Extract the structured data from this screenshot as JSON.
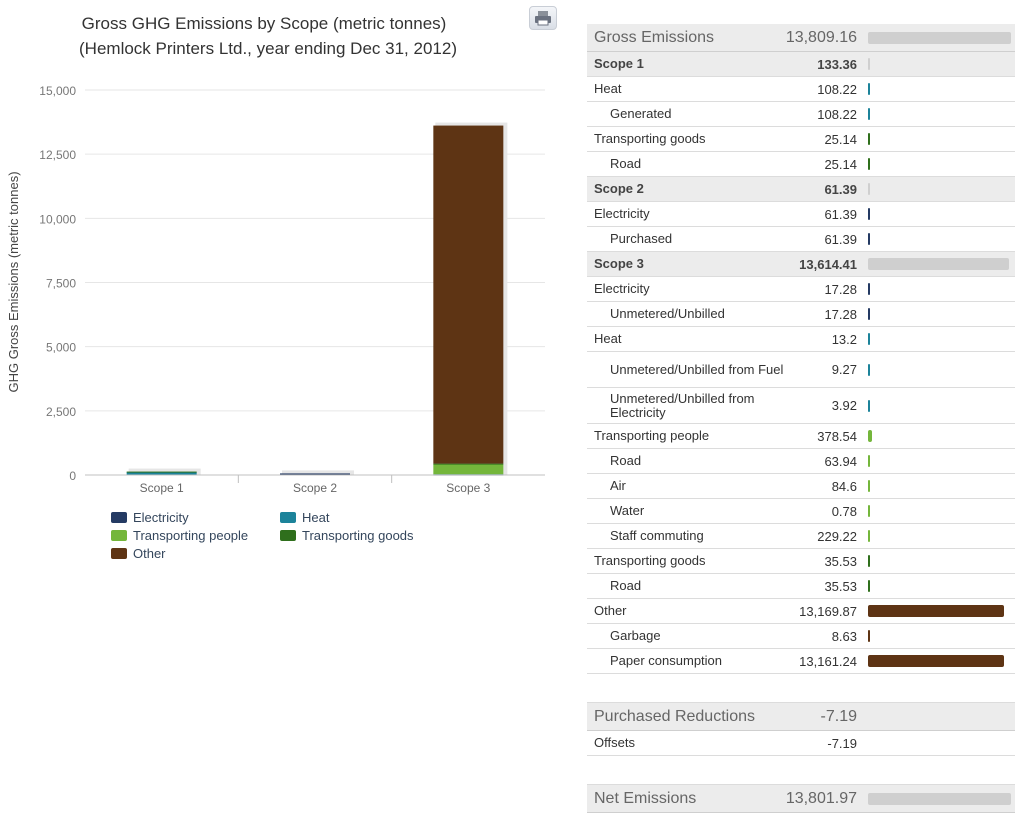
{
  "chart_data": {
    "type": "bar",
    "stacked": true,
    "title": "Gross GHG Emissions by Scope (metric tonnes)",
    "subtitle": "(Hemlock Printers Ltd., year ending Dec 31, 2012)",
    "xlabel": "",
    "ylabel": "GHG Gross Emissions (metric tonnes)",
    "ylim": [
      0,
      15000
    ],
    "yticks": [
      0,
      2500,
      5000,
      7500,
      10000,
      12500,
      15000
    ],
    "ytick_labels": [
      "0",
      "2,500",
      "5,000",
      "7,500",
      "10,000",
      "12,500",
      "15,000"
    ],
    "grid": true,
    "legend": "bottom-left",
    "categories": [
      "Scope 1",
      "Scope 2",
      "Scope 3"
    ],
    "series": [
      {
        "name": "Electricity",
        "color": "#243a63",
        "values": [
          0,
          61.39,
          17.28
        ]
      },
      {
        "name": "Heat",
        "color": "#1c839a",
        "values": [
          108.22,
          0,
          13.2
        ]
      },
      {
        "name": "Transporting people",
        "color": "#74b63b",
        "values": [
          0,
          0,
          378.54
        ]
      },
      {
        "name": "Transporting goods",
        "color": "#2f6f1c",
        "values": [
          25.14,
          0,
          35.53
        ]
      },
      {
        "name": "Other",
        "color": "#5e3414",
        "values": [
          0,
          0,
          13169.87
        ]
      }
    ]
  },
  "legend_items": [
    {
      "name": "Electricity",
      "color": "#243a63"
    },
    {
      "name": "Heat",
      "color": "#1c839a"
    },
    {
      "name": "Transporting people",
      "color": "#74b63b"
    },
    {
      "name": "Transporting goods",
      "color": "#2f6f1c"
    },
    {
      "name": "Other",
      "color": "#5e3414"
    }
  ],
  "table": {
    "bar_max": 13809.16,
    "rows": [
      {
        "label": "Gross Emissions",
        "value": "13,809.16",
        "num": 13809.16,
        "type": "header",
        "bar": "gray"
      },
      {
        "label": "Scope 1",
        "value": "133.36",
        "num": 133.36,
        "type": "scope",
        "bar": "gray"
      },
      {
        "label": "Heat",
        "value": "108.22",
        "num": 108.22,
        "bar": "#1c839a"
      },
      {
        "label": "Generated",
        "value": "108.22",
        "num": 108.22,
        "indent": true,
        "bar": "#1c839a"
      },
      {
        "label": "Transporting goods",
        "value": "25.14",
        "num": 25.14,
        "bar": "#2f6f1c"
      },
      {
        "label": "Road",
        "value": "25.14",
        "num": 25.14,
        "indent": true,
        "bar": "#2f6f1c"
      },
      {
        "label": "Scope 2",
        "value": "61.39",
        "num": 61.39,
        "type": "scope",
        "bar": "gray"
      },
      {
        "label": "Electricity",
        "value": "61.39",
        "num": 61.39,
        "bar": "#243a63"
      },
      {
        "label": "Purchased",
        "value": "61.39",
        "num": 61.39,
        "indent": true,
        "bar": "#243a63"
      },
      {
        "label": "Scope 3",
        "value": "13,614.41",
        "num": 13614.41,
        "type": "scope",
        "bar": "gray"
      },
      {
        "label": "Electricity",
        "value": "17.28",
        "num": 17.28,
        "bar": "#243a63"
      },
      {
        "label": "Unmetered/Unbilled",
        "value": "17.28",
        "num": 17.28,
        "indent": true,
        "bar": "#243a63"
      },
      {
        "label": "Heat",
        "value": "13.2",
        "num": 13.2,
        "bar": "#1c839a"
      },
      {
        "label": "Unmetered/Unbilled from Fuel",
        "value": "9.27",
        "num": 9.27,
        "indent": true,
        "tall": true,
        "bar": "#1c839a"
      },
      {
        "label": "Unmetered/Unbilled from Electricity",
        "value": "3.92",
        "num": 3.92,
        "indent": true,
        "tall": true,
        "bar": "#1c839a"
      },
      {
        "label": "Transporting people",
        "value": "378.54",
        "num": 378.54,
        "bar": "#74b63b"
      },
      {
        "label": "Road",
        "value": "63.94",
        "num": 63.94,
        "indent": true,
        "bar": "#74b63b"
      },
      {
        "label": "Air",
        "value": "84.6",
        "num": 84.6,
        "indent": true,
        "bar": "#74b63b"
      },
      {
        "label": "Water",
        "value": "0.78",
        "num": 0.78,
        "indent": true,
        "bar": "#74b63b"
      },
      {
        "label": "Staff commuting",
        "value": "229.22",
        "num": 229.22,
        "indent": true,
        "bar": "#74b63b"
      },
      {
        "label": "Transporting goods",
        "value": "35.53",
        "num": 35.53,
        "bar": "#2f6f1c"
      },
      {
        "label": "Road",
        "value": "35.53",
        "num": 35.53,
        "indent": true,
        "bar": "#2f6f1c"
      },
      {
        "label": "Other",
        "value": "13,169.87",
        "num": 13169.87,
        "bar": "#5e3414"
      },
      {
        "label": "Garbage",
        "value": "8.63",
        "num": 8.63,
        "indent": true,
        "bar": "#5e3414"
      },
      {
        "label": "Paper consumption",
        "value": "13,161.24",
        "num": 13161.24,
        "indent": true,
        "bar": "#5e3414"
      },
      {
        "type": "spacer"
      },
      {
        "label": "Purchased Reductions",
        "value": "-7.19",
        "num": -7.19,
        "type": "header"
      },
      {
        "label": "Offsets",
        "value": "-7.19",
        "num": -7.19
      },
      {
        "type": "spacer"
      },
      {
        "label": "Net Emissions",
        "value": "13,801.97",
        "num": 13801.97,
        "type": "header",
        "bar": "gray"
      }
    ]
  }
}
